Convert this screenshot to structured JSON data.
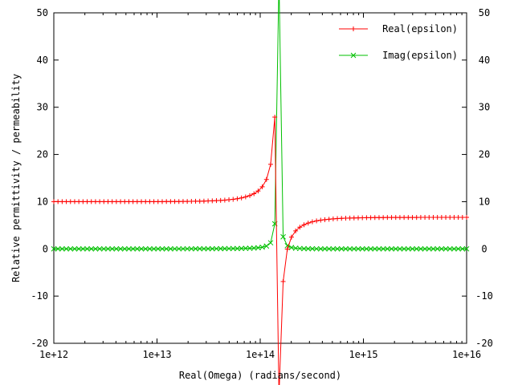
{
  "chart_data": {
    "type": "line",
    "xlabel": "Real(Omega) (radians/second)",
    "ylabel": "Relative permittivity / permeability",
    "x_scale": "log",
    "xlim": [
      1000000000000.0,
      1e+16
    ],
    "ylim": [
      -20,
      50
    ],
    "grid": false,
    "legend_position": "top-right",
    "x_ticks": [
      {
        "v": 1000000000000.0,
        "label": "1e+12"
      },
      {
        "v": 10000000000000.0,
        "label": "1e+13"
      },
      {
        "v": 100000000000000.0,
        "label": "1e+14"
      },
      {
        "v": 1000000000000000.0,
        "label": "1e+15"
      },
      {
        "v": 1e+16,
        "label": "1e+16"
      }
    ],
    "y_ticks": [
      {
        "v": -20,
        "label": "-20"
      },
      {
        "v": -10,
        "label": "-10"
      },
      {
        "v": 0,
        "label": "0"
      },
      {
        "v": 10,
        "label": "10"
      },
      {
        "v": 20,
        "label": "20"
      },
      {
        "v": 30,
        "label": "30"
      },
      {
        "v": 40,
        "label": "40"
      },
      {
        "v": 50,
        "label": "50"
      }
    ],
    "model": {
      "eps_static": 10.0,
      "eps_inf": 6.67,
      "omega_0": 150000000000000.0,
      "gamma": 6000000000000.0,
      "log_x_start": 12,
      "log_x_end": 16,
      "num_points": 100
    },
    "series": [
      {
        "name": "Real(epsilon)",
        "color": "#ff0000",
        "marker": "plus"
      },
      {
        "name": "Imag(epsilon)",
        "color": "#00c000",
        "marker": "cross"
      }
    ]
  }
}
